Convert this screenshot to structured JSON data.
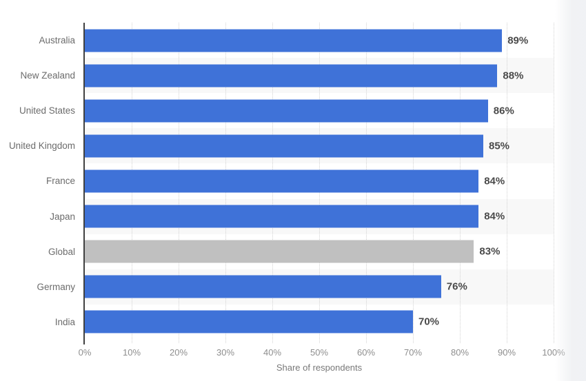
{
  "chart_data": {
    "type": "bar",
    "orientation": "horizontal",
    "categories": [
      "Australia",
      "New Zealand",
      "United States",
      "United Kingdom",
      "France",
      "Japan",
      "Global",
      "Germany",
      "India"
    ],
    "values": [
      89,
      88,
      86,
      85,
      84,
      84,
      83,
      76,
      70
    ],
    "value_labels": [
      "89%",
      "88%",
      "86%",
      "85%",
      "84%",
      "84%",
      "83%",
      "76%",
      "70%"
    ],
    "highlighted_category": "Global",
    "highlight_index": 6,
    "xlabel": "Share of respondents",
    "xlim": [
      0,
      100
    ],
    "x_ticks": [
      "0%",
      "10%",
      "20%",
      "30%",
      "40%",
      "50%",
      "60%",
      "70%",
      "80%",
      "90%",
      "100%"
    ],
    "grid": "vertical-dotted",
    "legend": "none",
    "colors": {
      "bar": "#3f72d8",
      "highlight_bar": "#c0c0c0",
      "row_stripe": "#f8f8f8",
      "gridline": "#d2d2d2",
      "axis_line": "#3f3f3f",
      "category_label": "#6b6b6b",
      "value_label": "#4a4a4a",
      "tick_label": "#8e8e8e",
      "axis_title": "#787878",
      "background": "#ffffff"
    }
  }
}
